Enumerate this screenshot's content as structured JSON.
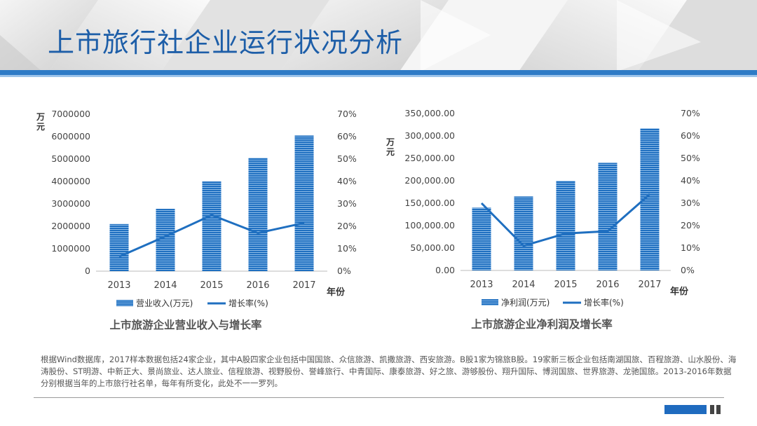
{
  "page": {
    "title": "上市旅行社企业运行状况分析",
    "note": "根据Wind数据库，2017样本数据包括24家企业，其中A股四家企业包括中国国旅、众信旅游、凯撒旅游、西安旅游。B股1家为锦旅B股。19家新三板企业包括南湖国旅、百程旅游、山水股份、海涛股份、ST明游、中新正大、景尚旅业、达人旅业、信程旅游、视野股份、誉峰旅行、中青国际、康泰旅游、好之旅、游够股份、翔升国际、博润国旅、世界旅游、龙驰国旅。2013-2016年数据分别根据当年的上市旅行社名单，每年有所变化，此处不一一罗列。"
  },
  "colors": {
    "bar": "#1f6fc0",
    "line": "#1f6fc0",
    "title": "#1d5ea8",
    "band": "#2e7bc6"
  },
  "chart_data": [
    {
      "type": "bar",
      "title": "上市旅游企业营业收入与增长率",
      "categories": [
        "2013",
        "2014",
        "2015",
        "2016",
        "2017"
      ],
      "xlabel": "年份",
      "ylabel": "万元",
      "ylim": [
        0,
        7000000
      ],
      "y_ticks": [
        "0",
        "1000000",
        "2000000",
        "3000000",
        "4000000",
        "5000000",
        "6000000",
        "7000000"
      ],
      "y2lim": [
        0,
        70
      ],
      "y2_ticks": [
        "0%",
        "10%",
        "20%",
        "30%",
        "40%",
        "50%",
        "60%",
        "70%"
      ],
      "legend": "bottom",
      "series": [
        {
          "name": "营业收入(万元)",
          "type": "bar",
          "axis": "left",
          "values": [
            2100000,
            2780000,
            4000000,
            5050000,
            6050000
          ]
        },
        {
          "name": "增长率(%)",
          "type": "line",
          "axis": "right",
          "values": [
            6.5,
            15.5,
            25,
            17,
            21.5
          ]
        }
      ]
    },
    {
      "type": "bar",
      "title": "上市旅游企业净利润及增长率",
      "categories": [
        "2013",
        "2014",
        "2015",
        "2016",
        "2017"
      ],
      "xlabel": "年份",
      "ylabel": "万元",
      "ylim": [
        0,
        350000
      ],
      "y_ticks": [
        "0.00",
        "50,000.00",
        "100,000.00",
        "150,000.00",
        "200,000.00",
        "250,000.00",
        "300,000.00",
        "350,000.00"
      ],
      "y2lim": [
        0,
        70
      ],
      "y2_ticks": [
        "0%",
        "10%",
        "20%",
        "30%",
        "40%",
        "50%",
        "60%",
        "70%"
      ],
      "legend": "bottom",
      "series": [
        {
          "name": "净利润(万元)",
          "type": "bar",
          "axis": "left",
          "values": [
            140000,
            165000,
            200000,
            240000,
            317000
          ]
        },
        {
          "name": "增长率(%)",
          "type": "line",
          "axis": "right",
          "values": [
            30,
            11,
            16.5,
            17.5,
            34
          ]
        }
      ]
    }
  ]
}
